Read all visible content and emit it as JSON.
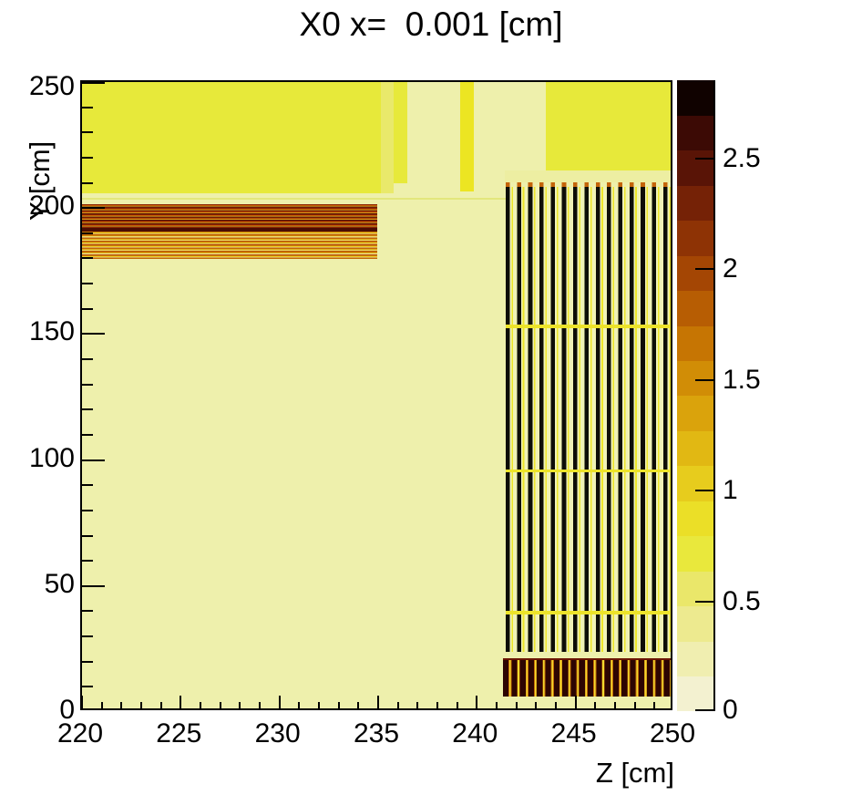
{
  "title": "X0 x=  0.001 [cm]",
  "chart_data": {
    "type": "heatmap",
    "title": "X0 x=  0.001 [cm]",
    "xlabel": "Z [cm]",
    "ylabel": "Y [cm]",
    "xlim": [
      220,
      250
    ],
    "ylim": [
      0,
      250
    ],
    "grid": false,
    "background_value_color": "#eef0ac",
    "frame_color": "#000000",
    "x_major_ticks": [
      220,
      225,
      230,
      235,
      240,
      245,
      250
    ],
    "x_major_tick_labels": [
      "220",
      "225",
      "230",
      "235",
      "240",
      "245",
      "250"
    ],
    "x_minor_step": 1,
    "y_major_ticks": [
      0,
      50,
      100,
      150,
      200,
      250
    ],
    "y_major_tick_labels": [
      "0",
      "50",
      "100",
      "150",
      "200",
      "250"
    ],
    "y_minor_step": 10,
    "colorbar": {
      "position": "right",
      "zmin": 0,
      "zmax": 2.85,
      "ticks": [
        0,
        0.5,
        1,
        1.5,
        2,
        2.5
      ],
      "tick_labels": [
        "0",
        "0.5",
        "1",
        "1.5",
        "2",
        "2.5"
      ],
      "n_blocks": 18,
      "palette_bottom_to_top": [
        "#f3f1d0",
        "#f0eeb0",
        "#edea8f",
        "#eae76a",
        "#e9e83c",
        "#ebdf27",
        "#e7cc1d",
        "#e1b813",
        "#daa30c",
        "#d18d06",
        "#c67503",
        "#b75d03",
        "#a44604",
        "#8e3305",
        "#752206",
        "#591406",
        "#3c0a05",
        "#100200"
      ]
    },
    "features": [
      {
        "name": "yellow-block-top-left",
        "z": [
          220,
          235.15
        ],
        "y": [
          205.9,
          250
        ],
        "style": "solid",
        "color": "#e7e93a",
        "value": 0.55
      },
      {
        "name": "light-yellow-column",
        "z": [
          235.15,
          235.8
        ],
        "y": [
          205.9,
          250
        ],
        "style": "solid",
        "color": "#e9e96b",
        "value": 0.45
      },
      {
        "name": "yellow-column",
        "z": [
          235.8,
          236.5
        ],
        "y": [
          210,
          250
        ],
        "style": "solid",
        "color": "#e7e93a",
        "value": 0.55
      },
      {
        "name": "narrow-yellow-strip",
        "z": [
          239.15,
          239.85
        ],
        "y": [
          206.6,
          250
        ],
        "style": "solid",
        "color": "#ece522",
        "value": 0.6
      },
      {
        "name": "yellow-block-top-right",
        "z": [
          243.5,
          250
        ],
        "y": [
          214.9,
          250
        ],
        "style": "solid",
        "color": "#e7e93a",
        "value": 0.55
      },
      {
        "name": "pale-band-under-right-block",
        "z": [
          241.4,
          250
        ],
        "y": [
          210.2,
          214.9
        ],
        "style": "solid",
        "color": "#edeea2",
        "value": 0.2
      },
      {
        "name": "faint-yellow-line",
        "z": [
          220,
          245.5
        ],
        "y": [
          203.4,
          204.2
        ],
        "style": "solid",
        "color": "#e3e77c",
        "value": 0.35
      },
      {
        "name": "h-stripes-upper",
        "z": [
          220,
          234.95
        ],
        "y": [
          190.7,
          201.5
        ],
        "style": "hlines-dark",
        "value_range": [
          0.5,
          2.3
        ]
      },
      {
        "name": "h-stripes-dark-band",
        "z": [
          220,
          234.95
        ],
        "y": [
          190.7,
          192.1
        ],
        "style": "solid",
        "color": "#4a0d03",
        "value": 2.5
      },
      {
        "name": "h-stripes-lower",
        "z": [
          220,
          234.95
        ],
        "y": [
          179.8,
          190.7
        ],
        "style": "hlines-light",
        "value_range": [
          0.5,
          1.6
        ]
      },
      {
        "name": "v-stripe-caps",
        "z": [
          241.45,
          250
        ],
        "y": [
          208.4,
          210.2
        ],
        "style": "vcaps",
        "value": 1.3
      },
      {
        "name": "v-stripes",
        "z": [
          241.45,
          250
        ],
        "y": [
          23.9,
          208.4
        ],
        "style": "vbars",
        "value_range": [
          0.1,
          2.85
        ]
      },
      {
        "name": "yellow-hline-upper",
        "z": [
          241.45,
          250
        ],
        "y": [
          152.4,
          153.6
        ],
        "style": "solid",
        "color": "#ece32a",
        "value": 0.6
      },
      {
        "name": "yellow-hline-middle",
        "z": [
          241.45,
          250
        ],
        "y": [
          95.2,
          96.4
        ],
        "style": "solid",
        "color": "#ece32a",
        "value": 0.6
      },
      {
        "name": "yellow-hline-lower",
        "z": [
          241.45,
          250
        ],
        "y": [
          38.8,
          40.2
        ],
        "style": "solid",
        "color": "#ece32a",
        "value": 0.6
      },
      {
        "name": "dark-block-top-edge",
        "z": [
          241.3,
          250
        ],
        "y": [
          20.5,
          21.3
        ],
        "style": "solid",
        "color": "#6b1505",
        "value": 2.2
      },
      {
        "name": "dark-comb-block",
        "z": [
          241.3,
          250
        ],
        "y": [
          6.2,
          20.5
        ],
        "style": "darkcomb",
        "value_range": [
          0.6,
          2.7
        ]
      }
    ]
  }
}
